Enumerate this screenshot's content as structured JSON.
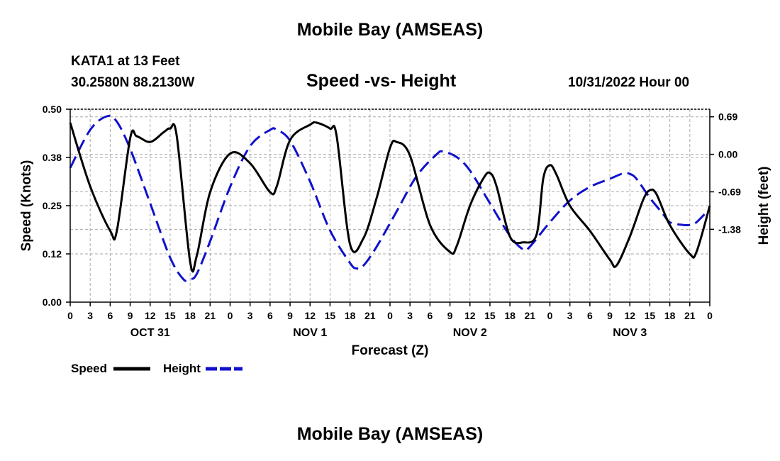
{
  "header": {
    "title": "Mobile Bay (AMSEAS)",
    "station": "KATA1 at 13 Feet",
    "coordinates": "30.2580N  88.2130W",
    "subtitle": "Speed -vs- Height",
    "datetime": "10/31/2022 Hour 00",
    "footer_title": "Mobile Bay (AMSEAS)"
  },
  "chart_data": {
    "type": "line",
    "title": "Speed -vs- Height",
    "xlabel": "Forecast (Z)",
    "ylabel": "Speed (Knots)",
    "y2label": "Height (feet)",
    "x_range": [
      0,
      96
    ],
    "ylim": [
      0,
      0.5
    ],
    "y2lim": [
      -2.72,
      0.83
    ],
    "y_ticks": [
      "0.00",
      "0.12",
      "0.25",
      "0.38",
      "0.50"
    ],
    "y_tick_values": [
      0,
      0.125,
      0.25,
      0.375,
      0.5
    ],
    "y2_ticks": [
      "0.69",
      "0.00",
      "-0.69",
      "-1.38"
    ],
    "y2_tick_values": [
      0.69,
      0,
      -0.69,
      -1.38
    ],
    "x_ticks": [
      "0",
      "3",
      "6",
      "9",
      "12",
      "15",
      "18",
      "21",
      "0",
      "3",
      "6",
      "9",
      "12",
      "15",
      "18",
      "21",
      "0",
      "3",
      "6",
      "9",
      "12",
      "15",
      "18",
      "21",
      "0",
      "3",
      "6",
      "9",
      "12",
      "15",
      "18",
      "21",
      "0"
    ],
    "day_labels": [
      {
        "label": "OCT 31",
        "hour": 12
      },
      {
        "label": "NOV 1",
        "hour": 36
      },
      {
        "label": "NOV 2",
        "hour": 60
      },
      {
        "label": "NOV 3",
        "hour": 84
      }
    ],
    "series": [
      {
        "name": "Speed",
        "axis": "left",
        "color": "#000000",
        "dash": "solid",
        "points": [
          [
            0,
            0.465
          ],
          [
            3,
            0.3
          ],
          [
            6,
            0.185
          ],
          [
            7,
            0.185
          ],
          [
            9,
            0.425
          ],
          [
            10,
            0.43
          ],
          [
            12,
            0.415
          ],
          [
            14,
            0.44
          ],
          [
            15,
            0.45
          ],
          [
            16,
            0.43
          ],
          [
            18,
            0.105
          ],
          [
            19,
            0.12
          ],
          [
            21,
            0.285
          ],
          [
            24,
            0.385
          ],
          [
            27,
            0.36
          ],
          [
            30,
            0.285
          ],
          [
            31,
            0.3
          ],
          [
            33,
            0.42
          ],
          [
            36,
            0.46
          ],
          [
            37,
            0.465
          ],
          [
            39,
            0.45
          ],
          [
            40,
            0.43
          ],
          [
            42,
            0.15
          ],
          [
            44,
            0.165
          ],
          [
            46,
            0.27
          ],
          [
            48,
            0.4
          ],
          [
            49,
            0.415
          ],
          [
            51,
            0.38
          ],
          [
            54,
            0.2
          ],
          [
            57,
            0.13
          ],
          [
            58,
            0.145
          ],
          [
            60,
            0.25
          ],
          [
            62,
            0.32
          ],
          [
            63,
            0.335
          ],
          [
            64,
            0.3
          ],
          [
            66,
            0.17
          ],
          [
            68,
            0.155
          ],
          [
            70,
            0.175
          ],
          [
            71,
            0.32
          ],
          [
            72,
            0.355
          ],
          [
            73,
            0.33
          ],
          [
            75,
            0.25
          ],
          [
            78,
            0.185
          ],
          [
            81,
            0.11
          ],
          [
            82,
            0.095
          ],
          [
            84,
            0.17
          ],
          [
            86,
            0.265
          ],
          [
            87,
            0.29
          ],
          [
            88,
            0.28
          ],
          [
            90,
            0.2
          ],
          [
            93,
            0.125
          ],
          [
            94,
            0.13
          ],
          [
            96,
            0.25
          ]
        ]
      },
      {
        "name": "Height",
        "axis": "right",
        "color": "#1111cc",
        "dash": "dashed",
        "points": [
          [
            0,
            -0.25
          ],
          [
            3,
            0.45
          ],
          [
            5.5,
            0.7
          ],
          [
            7,
            0.6
          ],
          [
            9,
            0.1
          ],
          [
            12,
            -0.9
          ],
          [
            15,
            -1.9
          ],
          [
            17,
            -2.3
          ],
          [
            18,
            -2.3
          ],
          [
            19,
            -2.2
          ],
          [
            21,
            -1.6
          ],
          [
            24,
            -0.6
          ],
          [
            27,
            0.15
          ],
          [
            30,
            0.45
          ],
          [
            31,
            0.45
          ],
          [
            33,
            0.25
          ],
          [
            36,
            -0.5
          ],
          [
            39,
            -1.4
          ],
          [
            42,
            -2.0
          ],
          [
            43,
            -2.1
          ],
          [
            44,
            -2.05
          ],
          [
            46,
            -1.7
          ],
          [
            49,
            -1.05
          ],
          [
            52,
            -0.4
          ],
          [
            55,
            0.0
          ],
          [
            56,
            0.05
          ],
          [
            58,
            -0.05
          ],
          [
            60,
            -0.3
          ],
          [
            63,
            -0.9
          ],
          [
            66,
            -1.5
          ],
          [
            68,
            -1.75
          ],
          [
            69,
            -1.7
          ],
          [
            72,
            -1.25
          ],
          [
            75,
            -0.85
          ],
          [
            78,
            -0.6
          ],
          [
            81,
            -0.45
          ],
          [
            83,
            -0.35
          ],
          [
            84,
            -0.36
          ],
          [
            85,
            -0.45
          ],
          [
            87,
            -0.8
          ],
          [
            89,
            -1.1
          ],
          [
            90,
            -1.25
          ],
          [
            92,
            -1.3
          ],
          [
            93,
            -1.3
          ],
          [
            94,
            -1.25
          ],
          [
            96,
            -1.0
          ]
        ]
      }
    ],
    "legend": [
      {
        "label": "Speed",
        "color": "#000000",
        "dash": "solid"
      },
      {
        "label": "Height",
        "color": "#1111cc",
        "dash": "dashed"
      }
    ],
    "grid": true,
    "legend_position": "bottom-left"
  }
}
